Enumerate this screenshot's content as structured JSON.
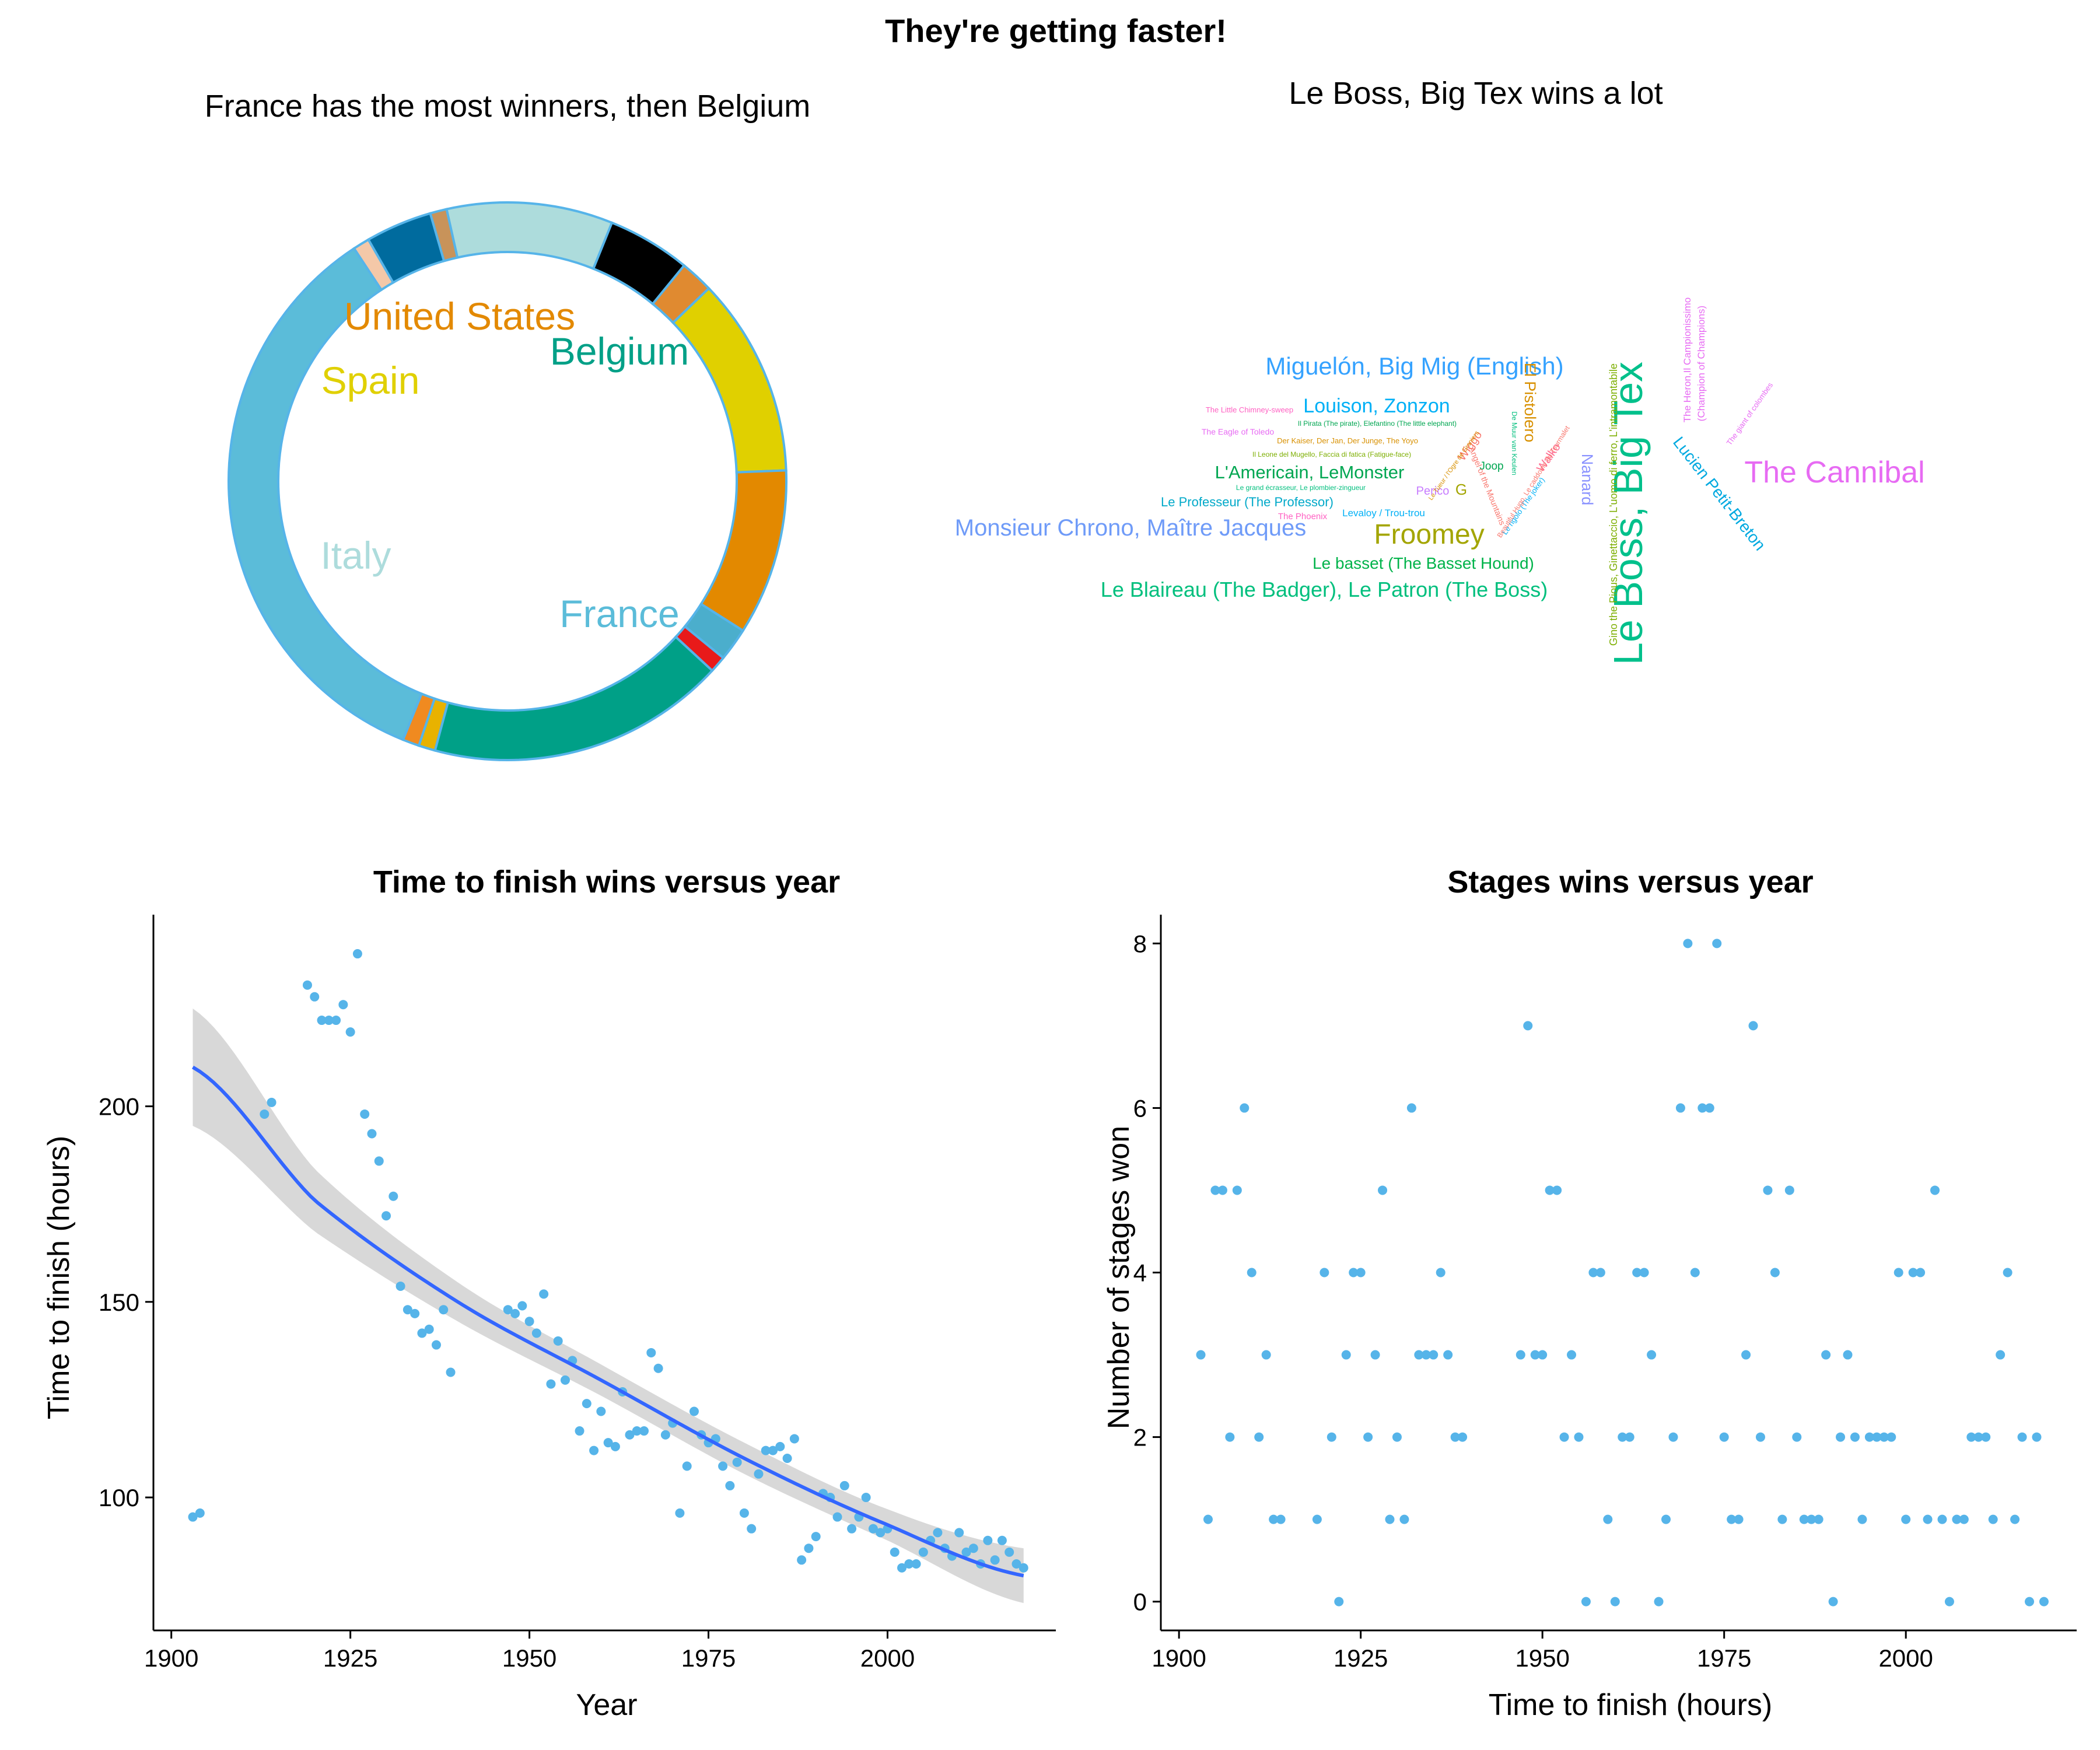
{
  "main_title": "They're getting faster!",
  "colors": {
    "point": "#56B4E9",
    "fit_line": "#3366FF",
    "ribbon": "#BEBEBE",
    "axis": "#000000",
    "donut_border": "#56B4E9"
  },
  "chart_data": [
    {
      "type": "pie",
      "variant": "donut",
      "title": "France has the most winners, then Belgium",
      "slices": [
        {
          "label": "France",
          "value": 36,
          "color": "#5BBCD9",
          "show_label": true
        },
        {
          "label": "",
          "value": 1,
          "color": "#F4C8A8",
          "show_label": false
        },
        {
          "label": "",
          "value": 4,
          "color": "#006B9E",
          "show_label": false
        },
        {
          "label": "",
          "value": 1,
          "color": "#C8935A",
          "show_label": false
        },
        {
          "label": "Italy",
          "value": 10,
          "color": "#ADDCDC",
          "show_label": true
        },
        {
          "label": "",
          "value": 5,
          "color": "#000000",
          "show_label": false
        },
        {
          "label": "",
          "value": 2,
          "color": "#E08A30",
          "show_label": false
        },
        {
          "label": "Spain",
          "value": 12,
          "color": "#E0D000",
          "show_label": true
        },
        {
          "label": "United States",
          "value": 10,
          "color": "#E38900",
          "show_label": true
        },
        {
          "label": "",
          "value": 2,
          "color": "#4BAECC",
          "show_label": false
        },
        {
          "label": "",
          "value": 1,
          "color": "#E81A1A",
          "show_label": false
        },
        {
          "label": "Belgium",
          "value": 18,
          "color": "#00A087",
          "show_label": true
        },
        {
          "label": "",
          "value": 1,
          "color": "#E8B200",
          "show_label": false
        },
        {
          "label": "",
          "value": 1,
          "color": "#F08A20",
          "show_label": false
        }
      ],
      "label_colors": {
        "France": "#5BBCD9",
        "Italy": "#ADDCDC",
        "Spain": "#E0D000",
        "United States": "#E38900",
        "Belgium": "#00A087"
      }
    },
    {
      "type": "wordcloud",
      "title": "Le Boss, Big Tex wins a lot",
      "words": [
        {
          "text": "Le Boss, Big Tex",
          "color": "#00C08B"
        },
        {
          "text": "The Cannibal",
          "color": "#E76BF3"
        },
        {
          "text": "Froomey",
          "color": "#A3A500"
        },
        {
          "text": "Miguelón, Big Mig (English)",
          "color": "#35A2FF"
        },
        {
          "text": "Monsieur Chrono, Maître Jacques",
          "color": "#6F9BF8"
        },
        {
          "text": "Le Blaireau (The Badger), Le Patron (The Boss)",
          "color": "#00BF7D"
        },
        {
          "text": "Louison, Zonzon",
          "color": "#00B0F6"
        },
        {
          "text": "L'Americain, LeMonster",
          "color": "#00A651"
        },
        {
          "text": "Le basset (The Basset Hound)",
          "color": "#00B34A"
        },
        {
          "text": "Le Professeur (The Professor)",
          "color": "#00A9C9"
        },
        {
          "text": "Lucien Petit-Breton",
          "color": "#00A9E0"
        },
        {
          "text": "Nanard",
          "color": "#8B93FF"
        },
        {
          "text": "El Pistolero",
          "color": "#D89000"
        },
        {
          "text": "Gino the Pious, Ginettaccio, L'uomo di ferro, L'intramontabile",
          "color": "#7CAE00"
        },
        {
          "text": "The Heron,Il Campionissimo",
          "color": "#E76BF3"
        },
        {
          "text": "(Champion of Champions)",
          "color": "#E76BF3"
        },
        {
          "text": "Wiggo",
          "color": "#F8766D"
        },
        {
          "text": "Walko",
          "color": "#FF6C91"
        },
        {
          "text": "Perico",
          "color": "#C77CFF"
        },
        {
          "text": "G",
          "color": "#A3A500"
        },
        {
          "text": "Joop",
          "color": "#00A651"
        },
        {
          "text": "Levaloy / Trou-trou",
          "color": "#00B0F6"
        },
        {
          "text": "The Phoenix",
          "color": "#FF61C3"
        },
        {
          "text": "The Little Chimney-sweep",
          "color": "#FF61C3"
        },
        {
          "text": "The Eagle of Toledo",
          "color": "#E76BF3"
        },
        {
          "text": "Il Pirata (The pirate), Elefantino (The little elephant)",
          "color": "#00A651"
        },
        {
          "text": "Der Kaiser, Der Jan, Der Junge, The Yoyo",
          "color": "#D89000"
        },
        {
          "text": "Il Leone del Mugello, Faccia di fatica (Fatigue-face)",
          "color": "#7CAE00"
        },
        {
          "text": "Le grand écrasseur, Le plombier-zingueur",
          "color": "#00BF7D"
        },
        {
          "text": "Le rigolo (The joker)",
          "color": "#00B0F6"
        },
        {
          "text": "The giant of colombes",
          "color": "#E76BF3"
        },
        {
          "text": "Angel of the Mountains",
          "color": "#F8766D"
        },
        {
          "text": "Beautiful Hugo, Le caddoine du Tourmalet",
          "color": "#F8766D"
        },
        {
          "text": "De Muur van Keulen",
          "color": "#00BF7D"
        },
        {
          "text": "Le Tueur / l'Ogre de Graniers",
          "color": "#D89000"
        }
      ]
    },
    {
      "type": "scatter",
      "title": "Time to finish wins versus year",
      "xlabel": "Year",
      "ylabel": "Time to finish (hours)",
      "xlim": [
        1897.5,
        2023.5
      ],
      "ylim": [
        66,
        249
      ],
      "xticks": [
        1900,
        1925,
        1950,
        1975,
        2000
      ],
      "yticks": [
        100,
        150,
        200
      ],
      "trend": {
        "method": "loess",
        "x": [
          1903,
          1920,
          1940,
          1960,
          1980,
          2000,
          2019
        ],
        "y": [
          210,
          176,
          150,
          130,
          110,
          93,
          80
        ],
        "band": [
          15,
          8,
          5,
          4,
          4,
          4,
          7
        ]
      },
      "points": [
        [
          1903,
          95
        ],
        [
          1904,
          96
        ],
        [
          1913,
          198
        ],
        [
          1914,
          201
        ],
        [
          1919,
          231
        ],
        [
          1920,
          228
        ],
        [
          1921,
          222
        ],
        [
          1922,
          222
        ],
        [
          1923,
          222
        ],
        [
          1924,
          226
        ],
        [
          1925,
          219
        ],
        [
          1926,
          239
        ],
        [
          1927,
          198
        ],
        [
          1928,
          193
        ],
        [
          1929,
          186
        ],
        [
          1930,
          172
        ],
        [
          1931,
          177
        ],
        [
          1932,
          154
        ],
        [
          1933,
          148
        ],
        [
          1934,
          147
        ],
        [
          1935,
          142
        ],
        [
          1936,
          143
        ],
        [
          1937,
          139
        ],
        [
          1938,
          148
        ],
        [
          1939,
          132
        ],
        [
          1947,
          148
        ],
        [
          1948,
          147
        ],
        [
          1949,
          149
        ],
        [
          1950,
          145
        ],
        [
          1951,
          142
        ],
        [
          1952,
          152
        ],
        [
          1953,
          129
        ],
        [
          1954,
          140
        ],
        [
          1955,
          130
        ],
        [
          1956,
          135
        ],
        [
          1957,
          117
        ],
        [
          1958,
          124
        ],
        [
          1959,
          112
        ],
        [
          1960,
          122
        ],
        [
          1961,
          114
        ],
        [
          1962,
          113
        ],
        [
          1963,
          127
        ],
        [
          1964,
          116
        ],
        [
          1965,
          117
        ],
        [
          1966,
          117
        ],
        [
          1967,
          137
        ],
        [
          1968,
          133
        ],
        [
          1969,
          116
        ],
        [
          1970,
          119
        ],
        [
          1971,
          96
        ],
        [
          1972,
          108
        ],
        [
          1973,
          122
        ],
        [
          1974,
          116
        ],
        [
          1975,
          114
        ],
        [
          1976,
          115
        ],
        [
          1977,
          108
        ],
        [
          1978,
          103
        ],
        [
          1979,
          109
        ],
        [
          1980,
          96
        ],
        [
          1981,
          92
        ],
        [
          1982,
          106
        ],
        [
          1983,
          112
        ],
        [
          1984,
          112
        ],
        [
          1985,
          113
        ],
        [
          1986,
          110
        ],
        [
          1987,
          115
        ],
        [
          1988,
          84
        ],
        [
          1989,
          87
        ],
        [
          1990,
          90
        ],
        [
          1991,
          101
        ],
        [
          1992,
          100
        ],
        [
          1993,
          95
        ],
        [
          1994,
          103
        ],
        [
          1995,
          92
        ],
        [
          1996,
          95
        ],
        [
          1997,
          100
        ],
        [
          1998,
          92
        ],
        [
          1999,
          91
        ],
        [
          2000,
          92
        ],
        [
          2001,
          86
        ],
        [
          2002,
          82
        ],
        [
          2003,
          83
        ],
        [
          2004,
          83
        ],
        [
          2005,
          86
        ],
        [
          2006,
          89
        ],
        [
          2007,
          91
        ],
        [
          2008,
          87
        ],
        [
          2009,
          85
        ],
        [
          2010,
          91
        ],
        [
          2011,
          86
        ],
        [
          2012,
          87
        ],
        [
          2013,
          83
        ],
        [
          2014,
          89
        ],
        [
          2015,
          84
        ],
        [
          2016,
          89
        ],
        [
          2017,
          86
        ],
        [
          2018,
          83
        ],
        [
          2019,
          82
        ]
      ]
    },
    {
      "type": "scatter",
      "title": "Stages wins versus year",
      "xlabel": "Time to finish (hours)",
      "ylabel": "Number of stages won",
      "xlim": [
        1897.5,
        2023.5
      ],
      "ylim": [
        -0.35,
        8.35
      ],
      "xticks": [
        1900,
        1925,
        1950,
        1975,
        2000
      ],
      "yticks": [
        0,
        2,
        4,
        6,
        8
      ],
      "points": [
        [
          1903,
          3
        ],
        [
          1904,
          1
        ],
        [
          1905,
          5
        ],
        [
          1906,
          5
        ],
        [
          1907,
          2
        ],
        [
          1908,
          5
        ],
        [
          1909,
          6
        ],
        [
          1910,
          4
        ],
        [
          1911,
          2
        ],
        [
          1912,
          3
        ],
        [
          1913,
          1
        ],
        [
          1914,
          1
        ],
        [
          1919,
          1
        ],
        [
          1920,
          4
        ],
        [
          1921,
          2
        ],
        [
          1922,
          0
        ],
        [
          1923,
          3
        ],
        [
          1924,
          4
        ],
        [
          1925,
          4
        ],
        [
          1926,
          2
        ],
        [
          1927,
          3
        ],
        [
          1928,
          5
        ],
        [
          1929,
          1
        ],
        [
          1930,
          2
        ],
        [
          1931,
          1
        ],
        [
          1932,
          6
        ],
        [
          1933,
          3
        ],
        [
          1934,
          3
        ],
        [
          1935,
          3
        ],
        [
          1936,
          4
        ],
        [
          1937,
          3
        ],
        [
          1938,
          2
        ],
        [
          1939,
          2
        ],
        [
          1947,
          3
        ],
        [
          1948,
          7
        ],
        [
          1949,
          3
        ],
        [
          1950,
          3
        ],
        [
          1951,
          5
        ],
        [
          1952,
          5
        ],
        [
          1953,
          2
        ],
        [
          1954,
          3
        ],
        [
          1955,
          2
        ],
        [
          1956,
          0
        ],
        [
          1957,
          4
        ],
        [
          1958,
          4
        ],
        [
          1959,
          1
        ],
        [
          1960,
          0
        ],
        [
          1961,
          2
        ],
        [
          1962,
          2
        ],
        [
          1963,
          4
        ],
        [
          1964,
          4
        ],
        [
          1965,
          3
        ],
        [
          1966,
          0
        ],
        [
          1967,
          1
        ],
        [
          1968,
          2
        ],
        [
          1969,
          6
        ],
        [
          1970,
          8
        ],
        [
          1971,
          4
        ],
        [
          1972,
          6
        ],
        [
          1973,
          6
        ],
        [
          1974,
          8
        ],
        [
          1975,
          2
        ],
        [
          1976,
          1
        ],
        [
          1977,
          1
        ],
        [
          1978,
          3
        ],
        [
          1979,
          7
        ],
        [
          1980,
          2
        ],
        [
          1981,
          5
        ],
        [
          1982,
          4
        ],
        [
          1983,
          1
        ],
        [
          1984,
          5
        ],
        [
          1985,
          2
        ],
        [
          1986,
          1
        ],
        [
          1987,
          1
        ],
        [
          1988,
          1
        ],
        [
          1989,
          3
        ],
        [
          1990,
          0
        ],
        [
          1991,
          2
        ],
        [
          1992,
          3
        ],
        [
          1993,
          2
        ],
        [
          1994,
          1
        ],
        [
          1995,
          2
        ],
        [
          1996,
          2
        ],
        [
          1997,
          2
        ],
        [
          1998,
          2
        ],
        [
          1999,
          4
        ],
        [
          2000,
          1
        ],
        [
          2001,
          4
        ],
        [
          2002,
          4
        ],
        [
          2003,
          1
        ],
        [
          2004,
          5
        ],
        [
          2005,
          1
        ],
        [
          2006,
          0
        ],
        [
          2007,
          1
        ],
        [
          2008,
          1
        ],
        [
          2009,
          2
        ],
        [
          2010,
          2
        ],
        [
          2011,
          2
        ],
        [
          2012,
          1
        ],
        [
          2013,
          3
        ],
        [
          2014,
          4
        ],
        [
          2015,
          1
        ],
        [
          2016,
          2
        ],
        [
          2017,
          0
        ],
        [
          2018,
          2
        ],
        [
          2019,
          0
        ]
      ]
    }
  ]
}
